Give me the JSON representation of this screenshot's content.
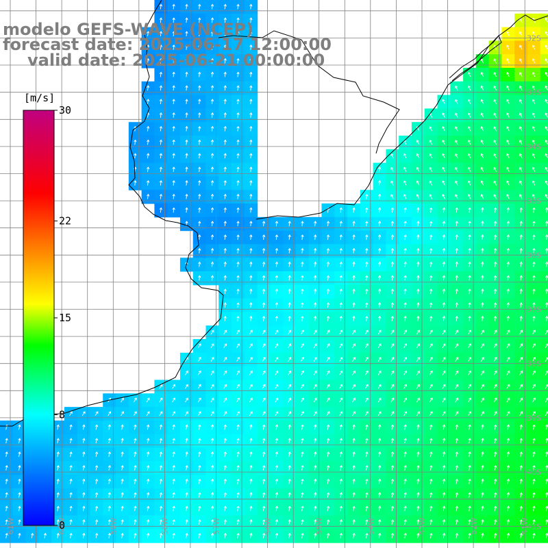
{
  "header": {
    "model_line": "modelo GEFS-WAVE (NCEP)",
    "forecast_line": "forecast date: 2025-06-17 12:00:00",
    "valid_line": "valid date: 2025-06-21 00:00:00"
  },
  "colorbar": {
    "unit": "[m/s]",
    "labels": [
      "30",
      "22",
      "15",
      "8",
      "0"
    ],
    "label_values": [
      30,
      22,
      15,
      8,
      0
    ],
    "min": 0,
    "max": 30,
    "stops": [
      {
        "value": 0,
        "color": "#0000ff"
      },
      {
        "value": 8,
        "color": "#00ffff"
      },
      {
        "value": 13,
        "color": "#00ff00"
      },
      {
        "value": 16,
        "color": "#ffff00"
      },
      {
        "value": 20,
        "color": "#ff8000"
      },
      {
        "value": 24,
        "color": "#ff0000"
      },
      {
        "value": 30,
        "color": "#c00080"
      }
    ]
  },
  "grid": {
    "lat_labels": [
      "32S",
      "33S",
      "34S",
      "35S",
      "36S",
      "37S",
      "38S",
      "39S",
      "40S",
      "41S"
    ],
    "lat_values": [
      32,
      33,
      34,
      35,
      36,
      37,
      38,
      39,
      40,
      41
    ],
    "lon_labels": [
      "61W",
      "60W",
      "59W",
      "58W",
      "57W",
      "56W",
      "55W",
      "54W",
      "53W",
      "52W",
      "51W"
    ],
    "lon_values": [
      61,
      60,
      59,
      58,
      57,
      56,
      55,
      54,
      53,
      52,
      51
    ],
    "lat_range": [
      31.3,
      41.4
    ],
    "lon_range": [
      61.2,
      50.55
    ],
    "grid_color": "#808080"
  },
  "colors": {
    "land": "#ffffff",
    "coast": "#000000",
    "arrow": "#ffffff"
  },
  "field": {
    "variable": "wind speed",
    "units": "m/s"
  }
}
